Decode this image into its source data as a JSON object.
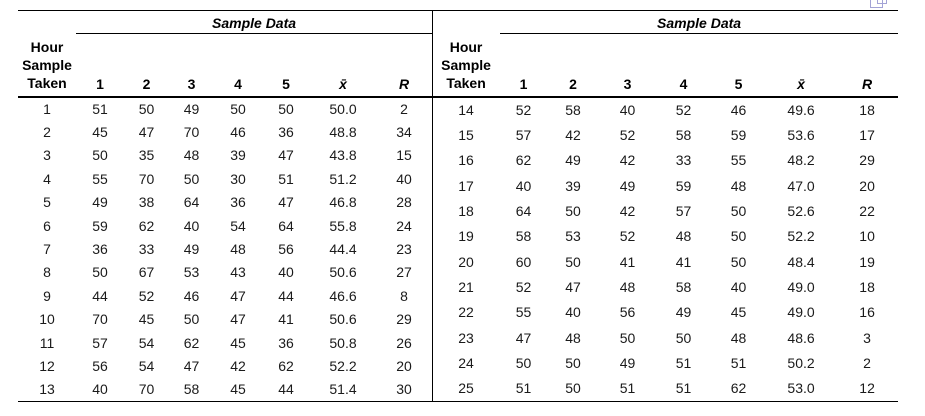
{
  "corner_icon": {
    "name": "floating-object-windows",
    "color": "#a3a3d6"
  },
  "tables": [
    {
      "spanner_label": "Sample Data",
      "hour_header_lines": [
        "Hour",
        "Sample",
        "Taken"
      ],
      "sample_columns": [
        "1",
        "2",
        "3",
        "4",
        "5"
      ],
      "xbar_label": "x̄",
      "r_label": "R",
      "rows": [
        {
          "hour": "1",
          "samples": [
            "51",
            "50",
            "49",
            "50",
            "50"
          ],
          "xbar": "50.0",
          "r": "2"
        },
        {
          "hour": "2",
          "samples": [
            "45",
            "47",
            "70",
            "46",
            "36"
          ],
          "xbar": "48.8",
          "r": "34"
        },
        {
          "hour": "3",
          "samples": [
            "50",
            "35",
            "48",
            "39",
            "47"
          ],
          "xbar": "43.8",
          "r": "15"
        },
        {
          "hour": "4",
          "samples": [
            "55",
            "70",
            "50",
            "30",
            "51"
          ],
          "xbar": "51.2",
          "r": "40"
        },
        {
          "hour": "5",
          "samples": [
            "49",
            "38",
            "64",
            "36",
            "47"
          ],
          "xbar": "46.8",
          "r": "28"
        },
        {
          "hour": "6",
          "samples": [
            "59",
            "62",
            "40",
            "54",
            "64"
          ],
          "xbar": "55.8",
          "r": "24"
        },
        {
          "hour": "7",
          "samples": [
            "36",
            "33",
            "49",
            "48",
            "56"
          ],
          "xbar": "44.4",
          "r": "23"
        },
        {
          "hour": "8",
          "samples": [
            "50",
            "67",
            "53",
            "43",
            "40"
          ],
          "xbar": "50.6",
          "r": "27"
        },
        {
          "hour": "9",
          "samples": [
            "44",
            "52",
            "46",
            "47",
            "44"
          ],
          "xbar": "46.6",
          "r": "8"
        },
        {
          "hour": "10",
          "samples": [
            "70",
            "45",
            "50",
            "47",
            "41"
          ],
          "xbar": "50.6",
          "r": "29"
        },
        {
          "hour": "11",
          "samples": [
            "57",
            "54",
            "62",
            "45",
            "36"
          ],
          "xbar": "50.8",
          "r": "26"
        },
        {
          "hour": "12",
          "samples": [
            "56",
            "54",
            "47",
            "42",
            "62"
          ],
          "xbar": "52.2",
          "r": "20"
        },
        {
          "hour": "13",
          "samples": [
            "40",
            "70",
            "58",
            "45",
            "44"
          ],
          "xbar": "51.4",
          "r": "30"
        }
      ]
    },
    {
      "spanner_label": "Sample Data",
      "hour_header_lines": [
        "Hour",
        "Sample",
        "Taken"
      ],
      "sample_columns": [
        "1",
        "2",
        "3",
        "4",
        "5"
      ],
      "xbar_label": "x̄",
      "r_label": "R",
      "rows": [
        {
          "hour": "14",
          "samples": [
            "52",
            "58",
            "40",
            "52",
            "46"
          ],
          "xbar": "49.6",
          "r": "18"
        },
        {
          "hour": "15",
          "samples": [
            "57",
            "42",
            "52",
            "58",
            "59"
          ],
          "xbar": "53.6",
          "r": "17"
        },
        {
          "hour": "16",
          "samples": [
            "62",
            "49",
            "42",
            "33",
            "55"
          ],
          "xbar": "48.2",
          "r": "29"
        },
        {
          "hour": "17",
          "samples": [
            "40",
            "39",
            "49",
            "59",
            "48"
          ],
          "xbar": "47.0",
          "r": "20"
        },
        {
          "hour": "18",
          "samples": [
            "64",
            "50",
            "42",
            "57",
            "50"
          ],
          "xbar": "52.6",
          "r": "22"
        },
        {
          "hour": "19",
          "samples": [
            "58",
            "53",
            "52",
            "48",
            "50"
          ],
          "xbar": "52.2",
          "r": "10"
        },
        {
          "hour": "20",
          "samples": [
            "60",
            "50",
            "41",
            "41",
            "50"
          ],
          "xbar": "48.4",
          "r": "19"
        },
        {
          "hour": "21",
          "samples": [
            "52",
            "47",
            "48",
            "58",
            "40"
          ],
          "xbar": "49.0",
          "r": "18"
        },
        {
          "hour": "22",
          "samples": [
            "55",
            "40",
            "56",
            "49",
            "45"
          ],
          "xbar": "49.0",
          "r": "16"
        },
        {
          "hour": "23",
          "samples": [
            "47",
            "48",
            "50",
            "50",
            "48"
          ],
          "xbar": "48.6",
          "r": "3"
        },
        {
          "hour": "24",
          "samples": [
            "50",
            "50",
            "49",
            "51",
            "51"
          ],
          "xbar": "50.2",
          "r": "2"
        },
        {
          "hour": "25",
          "samples": [
            "51",
            "50",
            "51",
            "51",
            "62"
          ],
          "xbar": "53.0",
          "r": "12"
        }
      ]
    }
  ]
}
